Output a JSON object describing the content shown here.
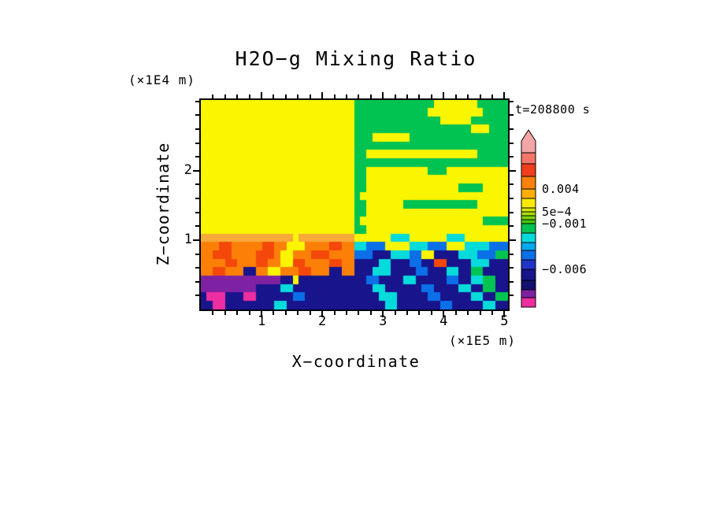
{
  "chart_data": {
    "type": "heatmap",
    "title": "H2O−g Mixing Ratio",
    "xlabel": "X−coordinate",
    "ylabel": "Z−coordinate",
    "x_unit": "(×1E5 m)",
    "z_unit": "(×1E4 m)",
    "time_label": "t=208800 s",
    "x_range": [
      0,
      5.06
    ],
    "z_range": [
      0,
      3.02
    ],
    "x_ticks": [
      1,
      2,
      3,
      4,
      5
    ],
    "z_ticks": [
      1,
      2
    ],
    "minor_tick_step": 0.2,
    "grid": "off",
    "legend_position": "right",
    "palette": {
      "Y": "#FAF500",
      "G": "#00C352",
      "A": "#F7A93B",
      "O": "#FC8008",
      "R": "#F4480A",
      "C": "#06DBDB",
      "B": "#0B6FE8",
      "N": "#18148C",
      "P": "#7E22A3",
      "M": "#ED2EA0"
    },
    "grid_rows_top_to_bottom": [
      "YYYYYYYYYYYYYYYYYYYYYYYYYGGGGGGGGGGGGGYYYYYYYGGGGG",
      "YYYYYYYYYYYYYYYYYYYYYYYYYGGGGGGGGGGGGYYYYYYYYYGGGG",
      "YYYYYYYYYYYYYYYYYYYYYYYYYGGGGGGGGGGGGGGYYYYYGGGGGG",
      "YYYYYYYYYYYYYYYYYYYYYYYYYGGGGGGGGGGGGGGGGGGGYYYGGG",
      "YYYYYYYYYYYYYYYYYYYYYYYYYGGGYYYYYYGGGGGGGGGGGGGGGG",
      "YYYYYYYYYYYYYYYYYYYYYYYYYGGGGGGGGGGGGGGGGGGGGGGGGG",
      "YYYYYYYYYYYYYYYYYYYYYYYYYGGYYYYYYYYYYYYYYYYYYGGGGG",
      "YYYYYYYYYYYYYYYYYYYYYYYYYGGGGGGGGGGGGGGGGGGGGGGGGG",
      "YYYYYYYYYYYYYYYYYYYYYYYYYGGYYYYYYYYYYGGGYYYYYYYYYY",
      "YYYYYYYYYYYYYYYYYYYYYYYYYGGYYYYYYYYYYYYYYYYYYYYYYY",
      "YYYYYYYYYYYYYYYYYYYYYYYYYGGYYYYYYYYYYYYYYYGGGGYYYY",
      "YYYYYYYYYYYYYYYYYYYYYYYYYGYYYYYYYYYYYYYYYYYYYYYYYY",
      "YYYYYYYYYYYYYYYYYYYYYYYYYGGYYYYYYGGGGGGGGGGGGYYYYY",
      "YYYYYYYYYYYYYYYYYYYYYYYYYGGYYYYYYYYYYYYYYYYYYYYYYY",
      "YYYYYYYYYYYYYYYYYYYYYYYYYGYYYYYYYYYYYYYYYYYYYYGGGG",
      "YYYYYYYYYYYYYYYYYYYYYYYYYGGYYYYYYYYYYYYYYYYYYYYYYY",
      "AAAAAAAAAAAAAAAYAAAAAAAAAYYYYYYCCCYYYYYYCCCYYYYYYY",
      "OOORROOOOORROOYYYOOOORROOCCBBBYYYYCCCBBBYYYCCCCBBB",
      "OORRROOOORRROYYOOORRROOOOBBBNNNCCCBBYYNNNNCCCBBBGG",
      "OOOORROOORROOYYRROOOORROONNNNCCNNNBBNNRRNNNNCCCNNN",
      "OORROOONNOOYYOOORROOONNOONNNCCCNNNNBBNNNCCNNGGNNNN",
      "PPPPPPPPPPPPPNNYNNNNNNNNNNNBBNNNNCCNNNNNBBNNCCGGNN",
      "PPPPPPPPPNNNNCCNNNNNNNNNNNNNCCNNNNNNBBNNNNCCNNGGNN",
      "NMMMNNNMMNNNNNNBBNNNNNNNNNNNNCCCNNNNNBBNNNNNCCNNGG",
      "NNMMNNNNNNNNCCNNNNNNNNNNNNNNNNCCNNNNNNNBBNNNNNCCNN"
    ],
    "colorbar": {
      "arrow_color": "#F2A6A6",
      "segments": [
        {
          "color": "#F4766A",
          "h": 14
        },
        {
          "color": "#F03E1E",
          "h": 16
        },
        {
          "color": "#FC8008",
          "h": 16
        },
        {
          "color": "#FFAE00",
          "h": 12
        },
        {
          "color": "#FCE903",
          "h": 12
        },
        {
          "color": "#D7E404",
          "h": 5
        },
        {
          "color": "#AADC05",
          "h": 5
        },
        {
          "color": "#7DD305",
          "h": 5
        },
        {
          "color": "#44C60B",
          "h": 5
        },
        {
          "color": "#00C352",
          "h": 12
        },
        {
          "color": "#06DBDB",
          "h": 12
        },
        {
          "color": "#00AAF0",
          "h": 10
        },
        {
          "color": "#0B6FE8",
          "h": 12
        },
        {
          "color": "#2035C8",
          "h": 12
        },
        {
          "color": "#18148C",
          "h": 14
        },
        {
          "color": "#121070",
          "h": 12
        },
        {
          "color": "#7E22A3",
          "h": 10
        },
        {
          "color": "#ED2EA0",
          "h": 12
        }
      ],
      "labels": [
        {
          "text": "0.004",
          "offset": 76
        },
        {
          "text": "5e−4",
          "offset": 105
        },
        {
          "text": "−0.001",
          "offset": 120
        },
        {
          "text": "−0.006",
          "offset": 178
        }
      ]
    }
  }
}
